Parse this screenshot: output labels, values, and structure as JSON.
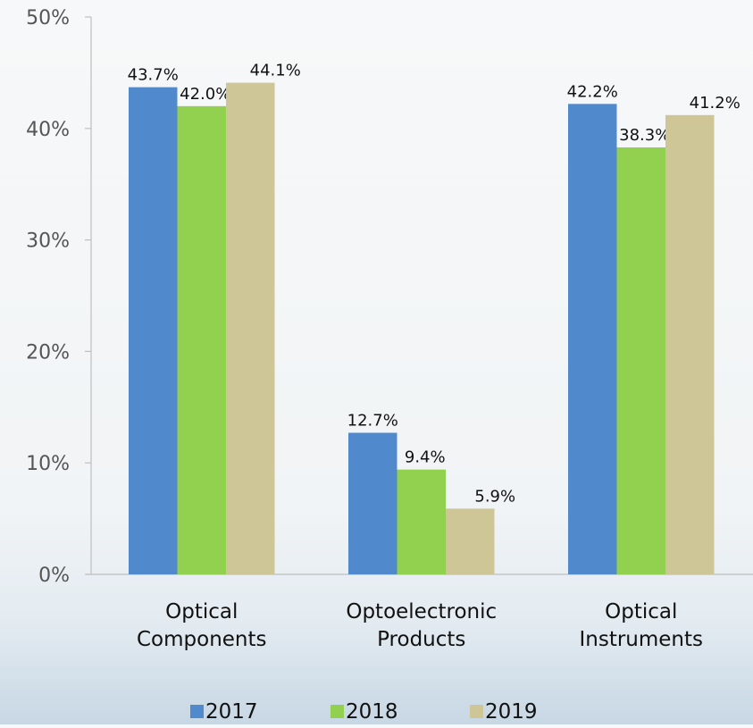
{
  "chart_data": {
    "type": "bar",
    "categories": [
      [
        "Optical",
        "Components"
      ],
      [
        "Optoelectronic",
        "Products"
      ],
      [
        "Optical",
        "Instruments"
      ]
    ],
    "series": [
      {
        "name": "2017",
        "color": "#5089cc",
        "values": [
          43.7,
          12.7,
          42.2
        ],
        "labels": [
          "43.7%",
          "12.7%",
          "42.2%"
        ]
      },
      {
        "name": "2018",
        "color": "#92d050",
        "values": [
          42.0,
          9.4,
          38.3
        ],
        "labels": [
          "42.0%",
          "9.4%",
          "38.3%"
        ]
      },
      {
        "name": "2019",
        "color": "#cfc698",
        "values": [
          44.1,
          5.9,
          41.2
        ],
        "labels": [
          "44.1%",
          "5.9%",
          "41.2%"
        ]
      }
    ],
    "y_ticks": [
      {
        "value": 0,
        "label": "0%"
      },
      {
        "value": 10,
        "label": "10%"
      },
      {
        "value": 20,
        "label": "20%"
      },
      {
        "value": 30,
        "label": "30%"
      },
      {
        "value": 40,
        "label": "40%"
      },
      {
        "value": 50,
        "label": "50%"
      }
    ],
    "ylim": [
      0,
      50
    ],
    "grid": false,
    "legend_position": "bottom",
    "title": "",
    "xlabel": "",
    "ylabel": ""
  }
}
